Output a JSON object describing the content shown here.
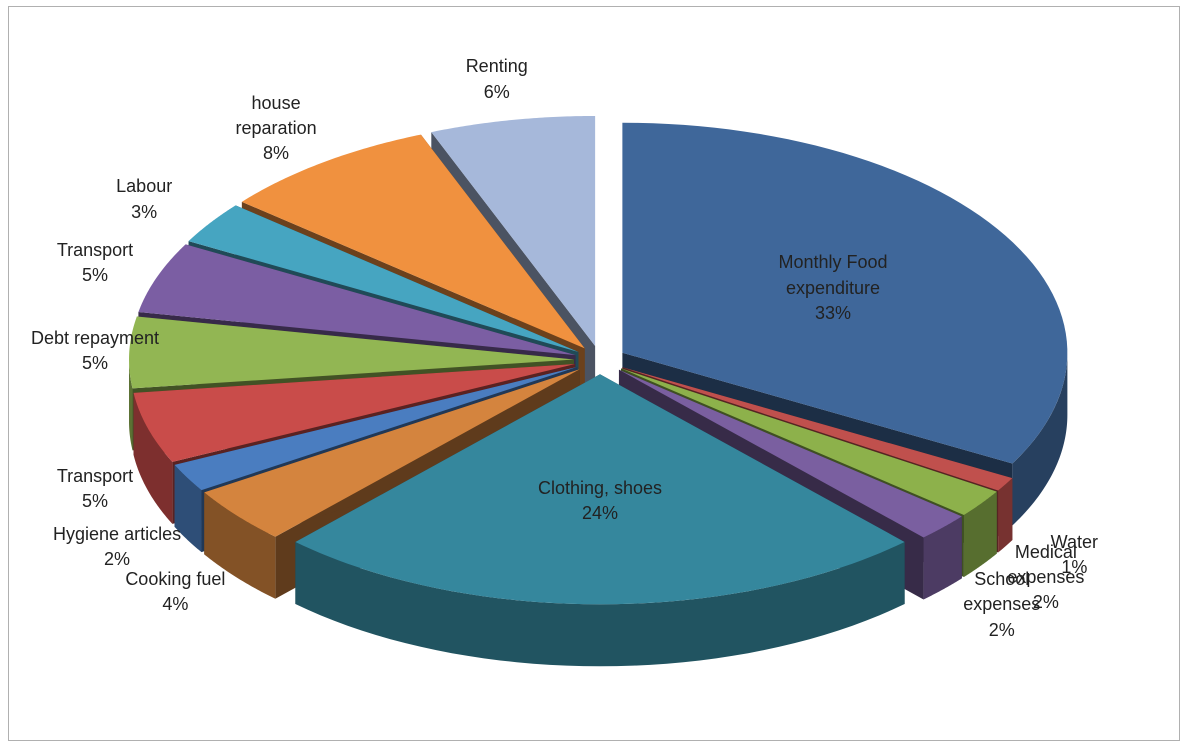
{
  "chart_data": {
    "type": "pie3d",
    "categories": [
      "Monthly Food expenditure",
      "Water",
      "Medical expenses",
      "School expenses",
      "Clothing, shoes",
      "Cooking fuel",
      "Hygiene articles",
      "Transport",
      "Debt repayment",
      "Transport",
      "Labour",
      "house reparation",
      "Renting"
    ],
    "values": [
      33,
      1,
      2,
      2,
      24,
      4,
      2,
      5,
      5,
      5,
      3,
      8,
      6
    ],
    "value_labels": [
      "33%",
      "1%",
      "2%",
      "2%",
      "24%",
      "4%",
      "2%",
      "5%",
      "5%",
      "5%",
      "3%",
      "8%",
      "6%"
    ],
    "colors": [
      "#3f679a",
      "#c0504d",
      "#8db14b",
      "#7a5fa0",
      "#35879d",
      "#d4843e",
      "#4a7dc0",
      "#c94c4a",
      "#92b653",
      "#7b5ea3",
      "#46a5c1",
      "#f0913f",
      "#a6b8da"
    ]
  }
}
